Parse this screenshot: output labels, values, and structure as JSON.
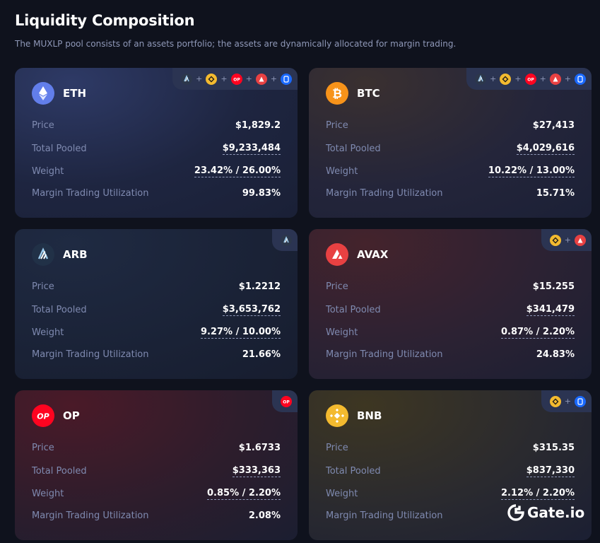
{
  "header": {
    "title": "Liquidity Composition",
    "subtitle": "The MUXLP pool consists of an assets portfolio; the assets are dynamically allocated for margin trading."
  },
  "labels": {
    "price": "Price",
    "total_pooled": "Total Pooled",
    "weight": "Weight",
    "utilization": "Margin Trading Utilization"
  },
  "cards": [
    {
      "token": "ETH",
      "price": "$1,829.2",
      "total_pooled": "$9,233,484",
      "weight": "23.42% / 26.00%",
      "utilization": "99.83%",
      "chains": [
        "arbitrum-icon",
        "bnb-chain-icon",
        "optimism-icon",
        "avalanche-icon",
        "fantom-icon"
      ]
    },
    {
      "token": "BTC",
      "price": "$27,413",
      "total_pooled": "$4,029,616",
      "weight": "10.22% / 13.00%",
      "utilization": "15.71%",
      "chains": [
        "arbitrum-icon",
        "bnb-chain-icon",
        "optimism-icon",
        "avalanche-icon",
        "fantom-icon"
      ]
    },
    {
      "token": "ARB",
      "price": "$1.2212",
      "total_pooled": "$3,653,762",
      "weight": "9.27% / 10.00%",
      "utilization": "21.66%",
      "chains": [
        "arbitrum-icon"
      ]
    },
    {
      "token": "AVAX",
      "price": "$15.255",
      "total_pooled": "$341,479",
      "weight": "0.87% / 2.20%",
      "utilization": "24.83%",
      "chains": [
        "bnb-chain-icon",
        "avalanche-icon"
      ]
    },
    {
      "token": "OP",
      "price": "$1.6733",
      "total_pooled": "$333,363",
      "weight": "0.85% / 2.20%",
      "utilization": "2.08%",
      "chains": [
        "optimism-icon"
      ]
    },
    {
      "token": "BNB",
      "price": "$315.35",
      "total_pooled": "$837,330",
      "weight": "2.12% / 2.20%",
      "utilization": "",
      "chains": [
        "bnb-chain-icon",
        "fantom-icon"
      ]
    }
  ],
  "watermark": {
    "logo_text": "Gate.io"
  },
  "colors": {
    "background": "#0f121d",
    "label": "#7f8ab0",
    "eth": "#627eea",
    "btc": "#f7931a",
    "arb": "#213147",
    "avax": "#e84142",
    "op": "#ff0420",
    "bnb": "#f3ba2f",
    "fantom": "#1969ff"
  }
}
